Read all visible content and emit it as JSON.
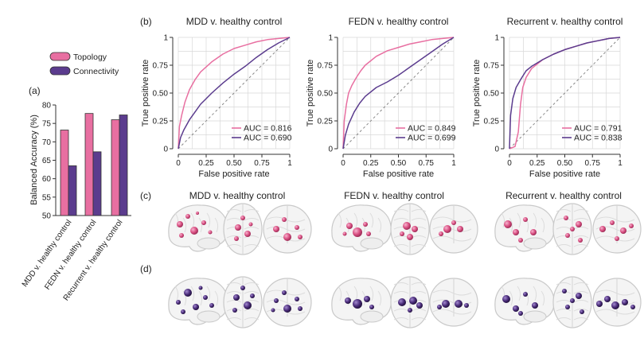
{
  "panel_labels": {
    "a": "(a)",
    "b": "(b)",
    "c": "(c)",
    "d": "(d)"
  },
  "colors": {
    "topology": "#e86fa1",
    "connectivity": "#5b3c8e",
    "diagonal": "#888888",
    "grid": "#d8d8d8"
  },
  "chart_data": [
    {
      "type": "bar",
      "panel": "(a)",
      "categories": [
        "MDD v. healthy control",
        "FEDN v. healthy control",
        "Recurrent v. healthy control"
      ],
      "series": [
        {
          "name": "Topology",
          "values": [
            73.2,
            77.7,
            76.0
          ]
        },
        {
          "name": "Connectivity",
          "values": [
            63.5,
            67.3,
            77.3
          ]
        }
      ],
      "ylabel": "Balanced Accuracy (%)",
      "ylim": [
        50,
        80
      ],
      "yticks": [
        50,
        55,
        60,
        65,
        70,
        75,
        80
      ],
      "legend_position": "top"
    },
    {
      "type": "line",
      "panel": "(b)",
      "title": "MDD v. healthy control",
      "xlabel": "False positive rate",
      "ylabel": "True positive rate",
      "xticks": [
        "0",
        "0.25",
        "0.50",
        "0.75",
        "1"
      ],
      "yticks": [
        "0",
        "0.25",
        "0.50",
        "0.75",
        "1"
      ],
      "series": [
        {
          "name": "Topology",
          "legend": "AUC = 0.816",
          "x": [
            0,
            0.01,
            0.03,
            0.06,
            0.1,
            0.15,
            0.2,
            0.3,
            0.4,
            0.5,
            0.6,
            0.7,
            0.8,
            0.9,
            1
          ],
          "y": [
            0,
            0.2,
            0.3,
            0.42,
            0.53,
            0.62,
            0.69,
            0.78,
            0.85,
            0.9,
            0.93,
            0.96,
            0.98,
            0.99,
            1
          ]
        },
        {
          "name": "Connectivity",
          "legend": "AUC = 0.690",
          "x": [
            0,
            0.02,
            0.05,
            0.1,
            0.15,
            0.2,
            0.3,
            0.4,
            0.5,
            0.6,
            0.7,
            0.8,
            0.9,
            1
          ],
          "y": [
            0,
            0.1,
            0.17,
            0.26,
            0.33,
            0.4,
            0.5,
            0.59,
            0.67,
            0.74,
            0.82,
            0.89,
            0.95,
            1
          ]
        }
      ]
    },
    {
      "type": "line",
      "panel": "(b)",
      "title": "FEDN v. healthy control",
      "xlabel": "False positive rate",
      "ylabel": "True positive rate",
      "xticks": [
        "0",
        "0.25",
        "0.50",
        "0.75",
        "1"
      ],
      "yticks": [
        "0",
        "0.25",
        "0.50",
        "0.75",
        "1"
      ],
      "series": [
        {
          "name": "Topology",
          "legend": "AUC = 0.849",
          "x": [
            0,
            0.01,
            0.03,
            0.05,
            0.08,
            0.12,
            0.16,
            0.2,
            0.3,
            0.4,
            0.5,
            0.6,
            0.7,
            0.8,
            0.9,
            1
          ],
          "y": [
            0,
            0.25,
            0.4,
            0.5,
            0.57,
            0.64,
            0.7,
            0.75,
            0.83,
            0.88,
            0.91,
            0.94,
            0.96,
            0.98,
            0.99,
            1
          ]
        },
        {
          "name": "Connectivity",
          "legend": "AUC = 0.699",
          "x": [
            0,
            0.02,
            0.05,
            0.1,
            0.15,
            0.2,
            0.3,
            0.4,
            0.5,
            0.6,
            0.7,
            0.8,
            0.9,
            1
          ],
          "y": [
            0,
            0.12,
            0.22,
            0.33,
            0.41,
            0.47,
            0.55,
            0.6,
            0.66,
            0.73,
            0.8,
            0.87,
            0.94,
            1
          ]
        }
      ]
    },
    {
      "type": "line",
      "panel": "(b)",
      "title": "Recurrent v. healthy control",
      "xlabel": "False positive rate",
      "ylabel": "True positive rate",
      "xticks": [
        "0",
        "0.25",
        "0.50",
        "0.75",
        "1"
      ],
      "yticks": [
        "0",
        "0.25",
        "0.50",
        "0.75",
        "1"
      ],
      "series": [
        {
          "name": "Topology",
          "legend": "AUC = 0.791",
          "x": [
            0,
            0.05,
            0.08,
            0.1,
            0.12,
            0.15,
            0.2,
            0.3,
            0.4,
            0.5,
            0.6,
            0.7,
            0.8,
            0.9,
            1
          ],
          "y": [
            0,
            0.02,
            0.15,
            0.4,
            0.55,
            0.64,
            0.72,
            0.8,
            0.85,
            0.89,
            0.92,
            0.95,
            0.97,
            0.99,
            1
          ]
        },
        {
          "name": "Connectivity",
          "legend": "AUC = 0.838",
          "x": [
            0,
            0.01,
            0.03,
            0.06,
            0.1,
            0.15,
            0.2,
            0.3,
            0.4,
            0.5,
            0.6,
            0.7,
            0.8,
            0.9,
            1
          ],
          "y": [
            0,
            0.3,
            0.45,
            0.55,
            0.62,
            0.7,
            0.74,
            0.8,
            0.85,
            0.89,
            0.92,
            0.95,
            0.97,
            0.99,
            1
          ]
        }
      ]
    }
  ],
  "brain_rows": {
    "c": {
      "titles": [
        "MDD v. healthy control",
        "FEDN v. healthy control",
        "Recurrent v. healthy control"
      ],
      "node_color": "#d94f82"
    },
    "d": {
      "node_color": "#4a2c7a"
    }
  }
}
